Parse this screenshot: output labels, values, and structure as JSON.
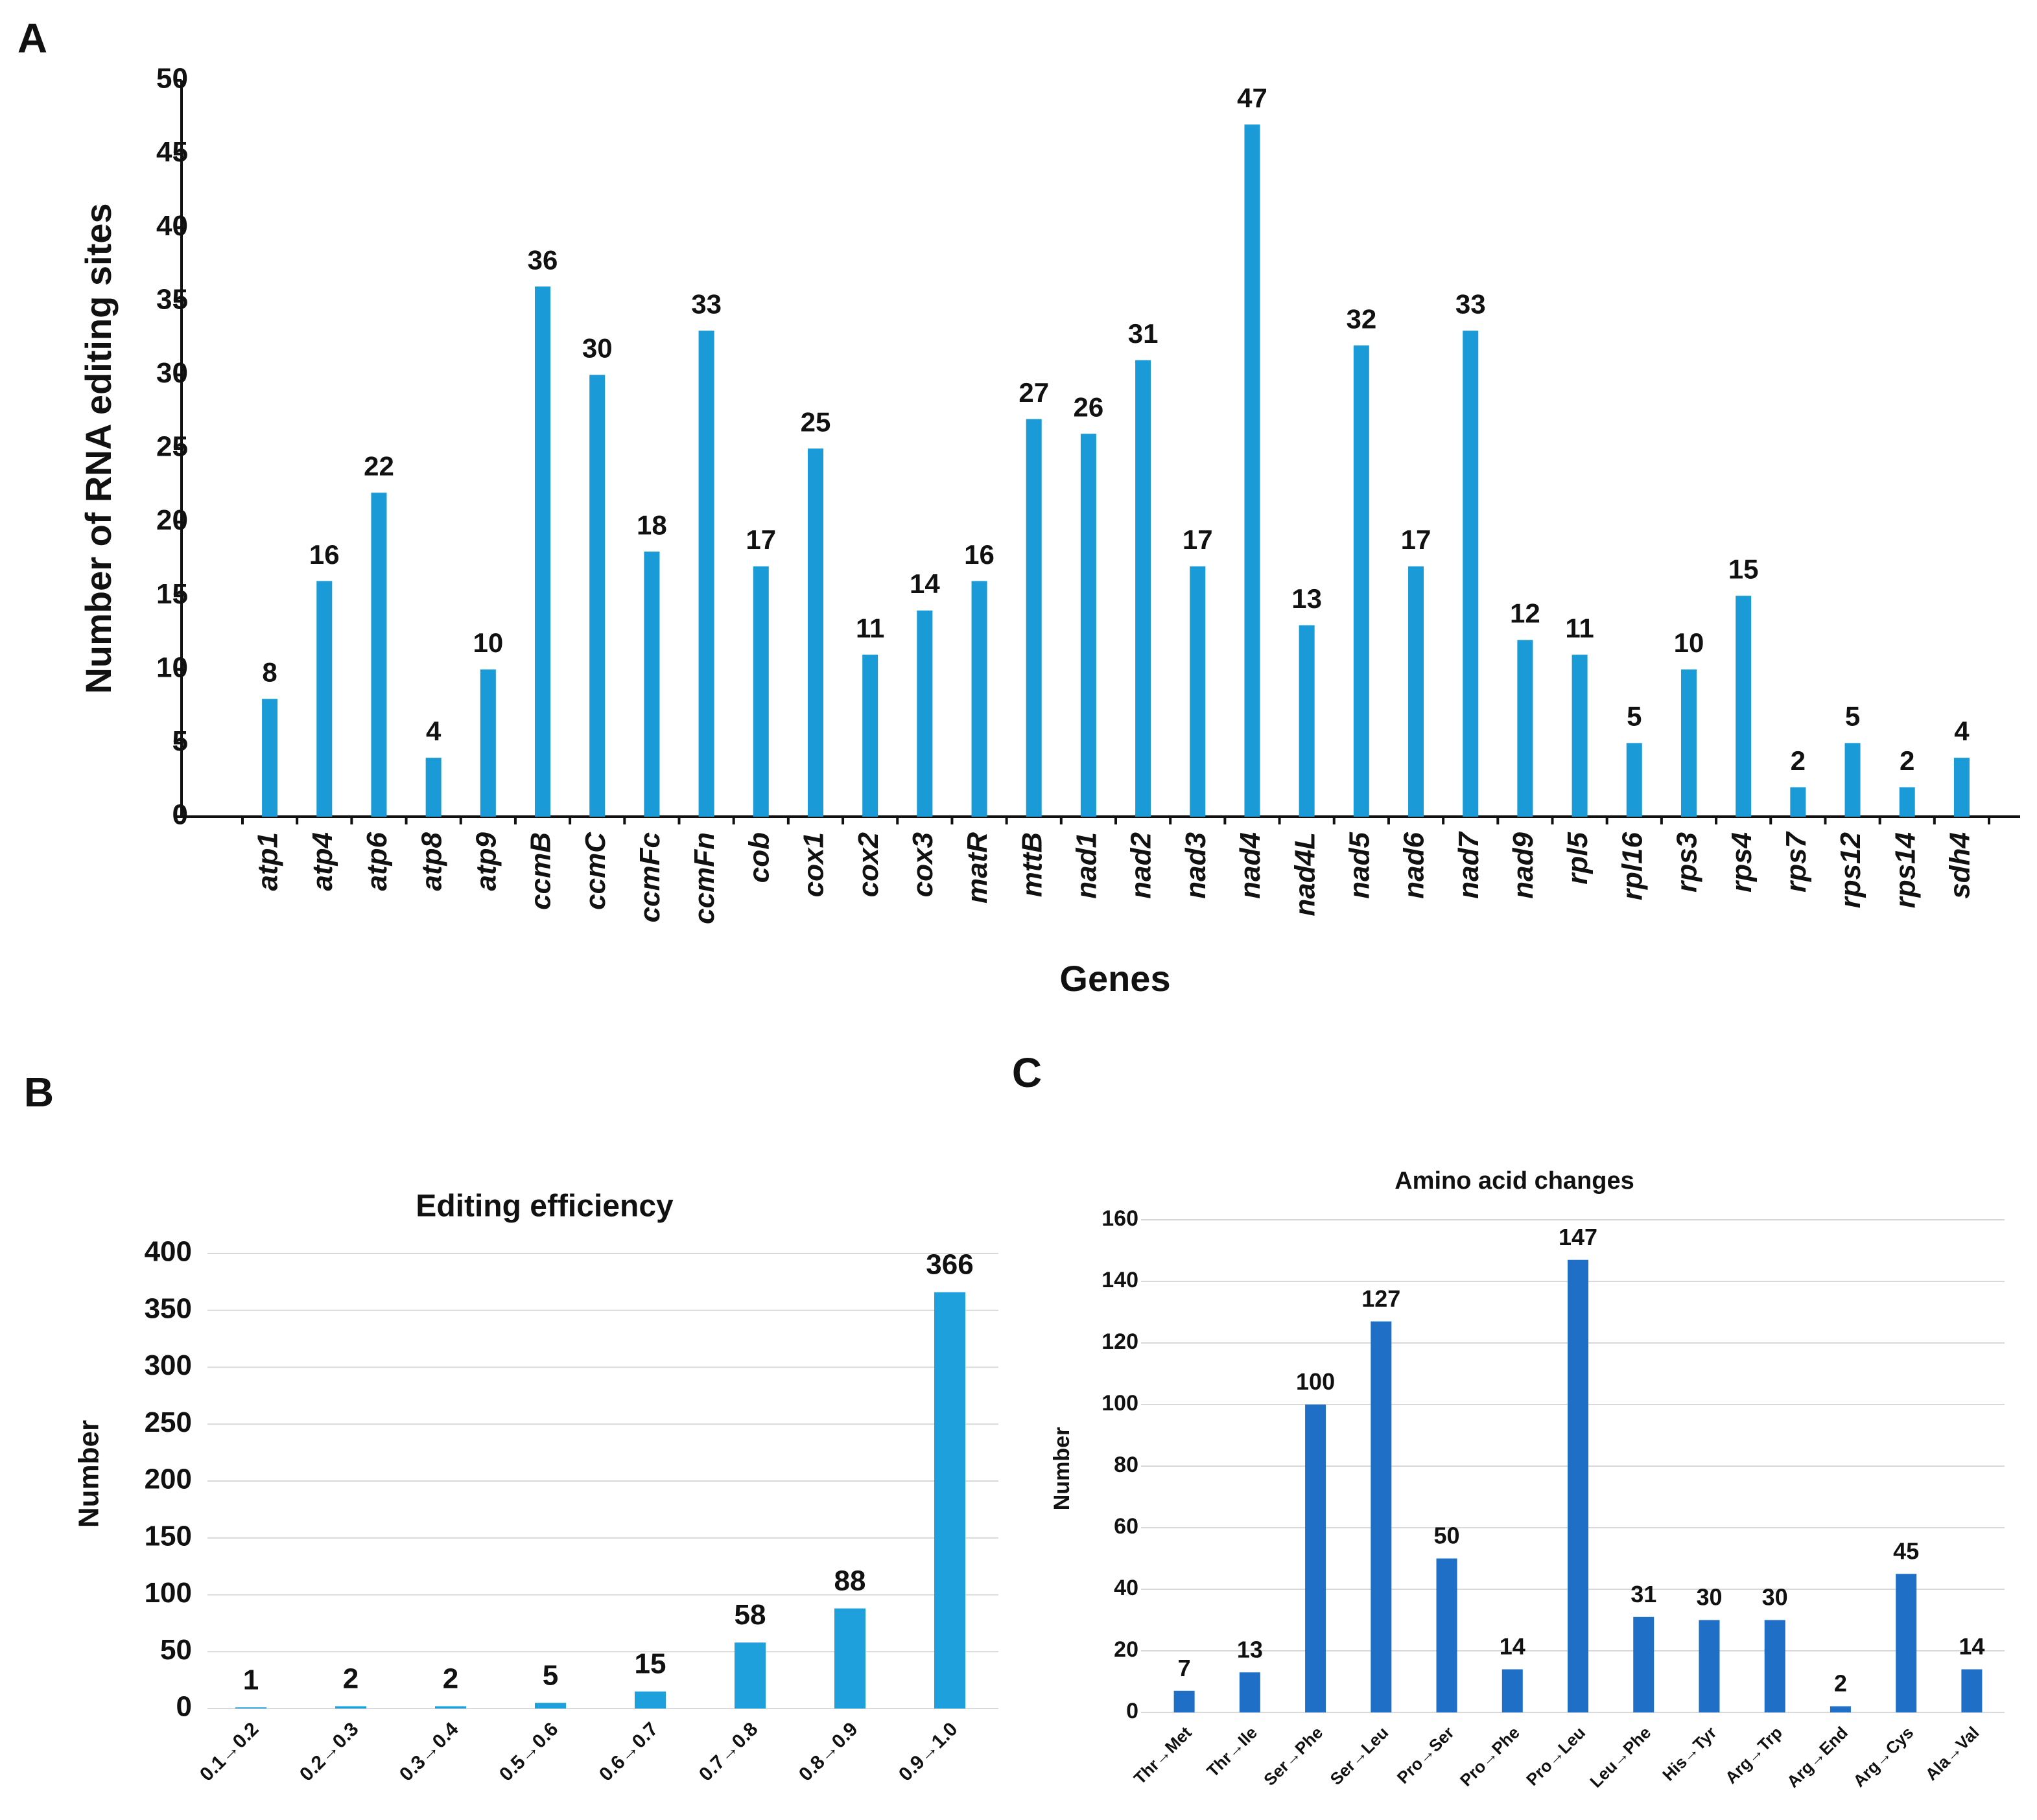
{
  "chart_data": [
    {
      "type": "bar",
      "label": "A",
      "x_label": "Genes",
      "y_label": "Number of RNA editing sites",
      "categories": [
        "atp1",
        "atp4",
        "atp6",
        "atp8",
        "atp9",
        "ccmB",
        "ccmC",
        "ccmFc",
        "ccmFn",
        "cob",
        "cox1",
        "cox2",
        "cox3",
        "matR",
        "mttB",
        "nad1",
        "nad2",
        "nad3",
        "nad4",
        "nad4L",
        "nad5",
        "nad6",
        "nad7",
        "nad9",
        "rpl5",
        "rpl16",
        "rps3",
        "rps4",
        "rps7",
        "rps12",
        "rps14",
        "sdh4"
      ],
      "values": [
        8,
        16,
        22,
        4,
        10,
        36,
        30,
        18,
        33,
        17,
        25,
        11,
        14,
        16,
        27,
        26,
        31,
        17,
        47,
        13,
        32,
        17,
        33,
        12,
        11,
        5,
        10,
        15,
        2,
        5,
        2,
        4
      ],
      "color": "#1a9ad6",
      "ylim": [
        0,
        50
      ],
      "yticks": [
        0,
        5,
        10,
        15,
        20,
        25,
        30,
        35,
        40,
        45,
        50
      ],
      "grid": false
    },
    {
      "type": "bar",
      "label": "B",
      "title": "Editing efficiency",
      "y_label": "Number",
      "categories": [
        "0.1→0.2",
        "0.2→0.3",
        "0.3→0.4",
        "0.5→0.6",
        "0.6→0.7",
        "0.7→0.8",
        "0.8→0.9",
        "0.9→1.0"
      ],
      "values": [
        1,
        2,
        2,
        5,
        15,
        58,
        88,
        366
      ],
      "color": "#1ea0dc",
      "ylim": [
        0,
        400
      ],
      "yticks": [
        0,
        50,
        100,
        150,
        200,
        250,
        300,
        350,
        400
      ],
      "grid": true
    },
    {
      "type": "bar",
      "label": "C",
      "title": "Amino acid changes",
      "y_label": "Number",
      "categories": [
        "Thr→Met",
        "Thr→Ile",
        "Ser→Phe",
        "Ser→Leu",
        "Pro→Ser",
        "Pro→Phe",
        "Pro→Leu",
        "Leu→Phe",
        "His→Tyr",
        "Arg→Trp",
        "Arg→End",
        "Arg→Cys",
        "Ala→Val"
      ],
      "values": [
        7,
        13,
        100,
        127,
        50,
        14,
        147,
        31,
        30,
        30,
        2,
        45,
        14
      ],
      "color": "#1f6fc6",
      "ylim": [
        0,
        160
      ],
      "yticks": [
        0,
        20,
        40,
        60,
        80,
        100,
        120,
        140,
        160
      ],
      "grid": true
    }
  ]
}
